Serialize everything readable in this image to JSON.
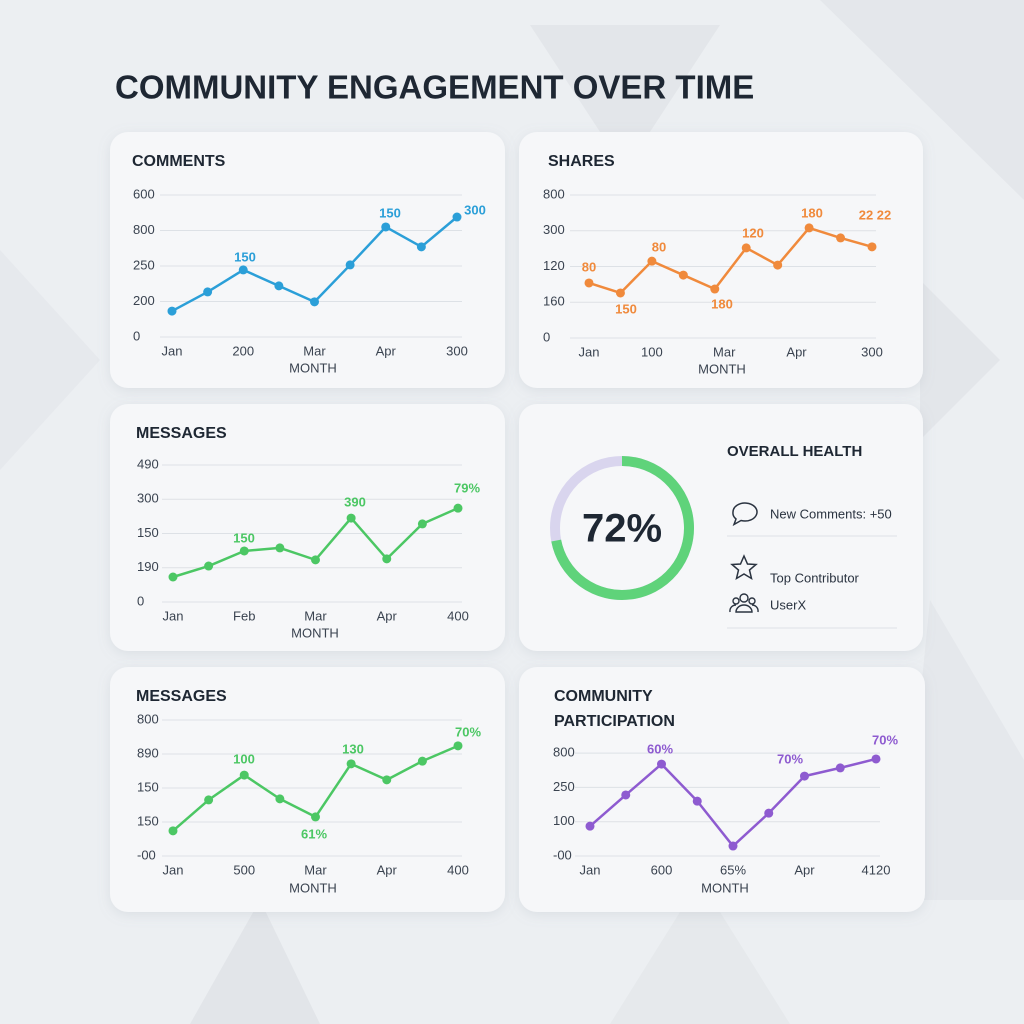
{
  "title": "COMMUNITY ENGAGEMENT OVER TIME",
  "chart_data": [
    {
      "type": "line",
      "title": "COMMENTS",
      "x_label": "MONTH",
      "color": "#2b9fd8",
      "x": [
        0,
        1,
        2,
        3,
        4,
        5,
        6,
        7,
        8
      ],
      "xlim": [
        0,
        8
      ],
      "xticks": [
        {
          "value": 0,
          "label": "Jan"
        },
        {
          "value": 2,
          "label": "200"
        },
        {
          "value": 4,
          "label": "Mar"
        },
        {
          "value": 6,
          "label": "Apr"
        },
        {
          "value": 8,
          "label": "300"
        }
      ],
      "ylim": [
        0,
        4
      ],
      "yticks": [
        0,
        {
          "value": 1,
          "label": "200"
        },
        {
          "value": 2,
          "label": "250"
        },
        {
          "value": 3,
          "label": "800"
        },
        {
          "value": 4,
          "label": "600"
        }
      ],
      "grid": true,
      "values": [
        0.73,
        1.27,
        1.89,
        1.44,
        0.99,
        2.03,
        3.1,
        2.54,
        3.38
      ],
      "annotations": [
        "150",
        "150",
        "300"
      ]
    },
    {
      "type": "line",
      "title": "SHARES",
      "x_label": "MONTH",
      "color": "#f08a3c",
      "x": [
        0,
        1,
        2,
        3,
        4,
        5,
        6,
        7,
        8,
        9
      ],
      "xlim": [
        0,
        9
      ],
      "xticks": [
        {
          "value": 0,
          "label": "Jan"
        },
        {
          "value": 2,
          "label": "100"
        },
        {
          "value": 4.3,
          "label": "Mar"
        },
        {
          "value": 6.6,
          "label": "Apr"
        },
        {
          "value": 9,
          "label": "300"
        }
      ],
      "ylim": [
        0,
        4
      ],
      "yticks": [
        0,
        {
          "value": 1,
          "label": "160"
        },
        {
          "value": 2,
          "label": "120"
        },
        {
          "value": 3,
          "label": "300"
        },
        {
          "value": 4,
          "label": "800"
        }
      ],
      "grid": true,
      "values": [
        1.54,
        1.26,
        2.15,
        1.76,
        1.37,
        2.52,
        2.04,
        3.08,
        2.8,
        2.55
      ],
      "annotations": [
        "80",
        "150",
        "80",
        "180",
        "120",
        "180",
        "22 22"
      ]
    },
    {
      "type": "line",
      "title": "MESSAGES",
      "x_label": "MONTH",
      "color": "#4cc764",
      "x": [
        0,
        1,
        2,
        3,
        4,
        5,
        6,
        7,
        8
      ],
      "xlim": [
        0,
        8
      ],
      "xticks": [
        {
          "value": 0,
          "label": "Jan"
        },
        {
          "value": 2,
          "label": "Feb"
        },
        {
          "value": 4,
          "label": "Mar"
        },
        {
          "value": 6,
          "label": "Apr"
        },
        {
          "value": 8,
          "label": "400"
        }
      ],
      "ylim": [
        0,
        4
      ],
      "yticks": [
        0,
        {
          "value": 1,
          "label": "190"
        },
        {
          "value": 2,
          "label": "150"
        },
        {
          "value": 3,
          "label": "300"
        },
        {
          "value": 4,
          "label": "490"
        }
      ],
      "grid": true,
      "values": [
        0.73,
        1.05,
        1.49,
        1.58,
        1.23,
        2.45,
        1.26,
        2.28,
        2.74
      ],
      "annotations": [
        "150",
        "390",
        "79%"
      ]
    },
    {
      "type": "line",
      "title": "MESSAGES",
      "x_label": "MONTH",
      "color": "#4cc764",
      "x": [
        0,
        1,
        2,
        3,
        4,
        5,
        6,
        7,
        8
      ],
      "xlim": [
        0,
        8
      ],
      "xticks": [
        {
          "value": 0,
          "label": "Jan"
        },
        {
          "value": 2,
          "label": "500"
        },
        {
          "value": 4,
          "label": "Mar"
        },
        {
          "value": 6,
          "label": "Apr"
        },
        {
          "value": 8,
          "label": "400"
        }
      ],
      "ylim": [
        0,
        4
      ],
      "yticks": [
        {
          "value": 0,
          "label": "-00"
        },
        {
          "value": 1,
          "label": "150"
        },
        {
          "value": 2,
          "label": "150"
        },
        {
          "value": 3,
          "label": "890"
        },
        {
          "value": 4,
          "label": "800"
        }
      ],
      "grid": true,
      "values": [
        0.74,
        1.65,
        2.38,
        1.68,
        1.15,
        2.71,
        2.24,
        2.79,
        3.24
      ],
      "annotations": [
        "100",
        "130",
        "61%",
        "70%"
      ]
    },
    {
      "type": "line",
      "title": "COMMUNITY PARTICIPATION",
      "x_label": "MONTH",
      "color": "#8e5bd0",
      "x": [
        0,
        1,
        2,
        3,
        4,
        5,
        6,
        7,
        8
      ],
      "xlim": [
        0,
        8
      ],
      "xticks": [
        {
          "value": 0,
          "label": "Jan"
        },
        {
          "value": 2,
          "label": "600"
        },
        {
          "value": 4,
          "label": "65%"
        },
        {
          "value": 6,
          "label": "Apr"
        },
        {
          "value": 8,
          "label": "4120"
        }
      ],
      "ylim": [
        0,
        3.5
      ],
      "yticks": [
        {
          "value": 0,
          "label": "-00"
        },
        {
          "value": 1,
          "label": "100"
        },
        {
          "value": 2,
          "label": "250"
        },
        {
          "value": 3,
          "label": "800"
        }
      ],
      "grid": true,
      "values": [
        0.87,
        1.78,
        2.68,
        1.6,
        0.29,
        1.25,
        2.33,
        2.57,
        2.83
      ],
      "annotations": [
        "60%",
        "70%",
        "70%"
      ]
    }
  ],
  "health": {
    "title": "OVERALL HEALTH",
    "gauge": {
      "value": 72,
      "label": "72%"
    },
    "items": [
      "New Comments: +50",
      "Top Contributor",
      "UserX"
    ]
  }
}
